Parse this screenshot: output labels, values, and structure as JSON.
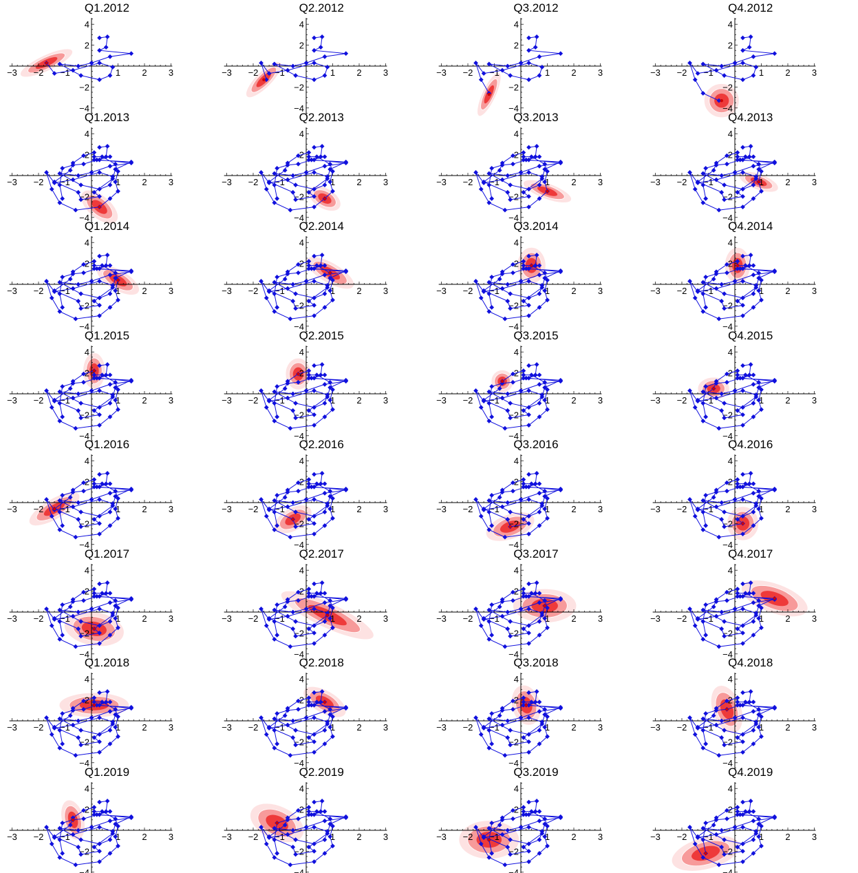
{
  "chart_data": {
    "type": "scatter",
    "layout": "small multiples, 8 rows x 4 columns",
    "xlim": [
      -3,
      3
    ],
    "ylim": [
      -4,
      4
    ],
    "x_ticks": [
      -3,
      -2,
      -1,
      1,
      2,
      3
    ],
    "y_ticks": [
      -4,
      -2,
      2,
      4
    ],
    "colors": {
      "path": "#1010dd",
      "density_core": "#ee3a3a",
      "density_mid": "#f79a9a",
      "density_outer": "#fde2e2",
      "current_marker": "#cc0000"
    },
    "panels": [
      {
        "title": "Q1.2012",
        "path": [
          [
            0.3,
            2.7
          ],
          [
            0.6,
            2.8
          ],
          [
            0.55,
            1.8
          ],
          [
            0.3,
            1.5
          ],
          [
            1.5,
            1.2
          ],
          [
            0.7,
            0.9
          ],
          [
            0.0,
            0.3
          ],
          [
            -0.5,
            0.0
          ],
          [
            -1.2,
            0.2
          ],
          [
            -0.4,
            -0.9
          ],
          [
            0.3,
            -1.3
          ],
          [
            0.7,
            -0.9
          ],
          [
            0.8,
            -0.1
          ],
          [
            0.3,
            0.3
          ],
          [
            -0.7,
            -0.4
          ],
          [
            -1.4,
            -0.7
          ],
          [
            -1.7,
            0.3
          ]
        ],
        "density": {
          "x": -1.7,
          "y": 0.3,
          "sx": 0.9,
          "sy": 0.35,
          "angle": 25
        }
      },
      {
        "title": "Q2.2012",
        "path": [
          [
            0.3,
            2.7
          ],
          [
            0.6,
            2.8
          ],
          [
            0.55,
            1.8
          ],
          [
            0.3,
            1.5
          ],
          [
            1.5,
            1.2
          ],
          [
            0.7,
            0.9
          ],
          [
            0.0,
            0.3
          ],
          [
            -0.5,
            0.0
          ],
          [
            -1.2,
            0.2
          ],
          [
            -0.4,
            -0.9
          ],
          [
            0.3,
            -1.3
          ],
          [
            0.7,
            -0.9
          ],
          [
            0.8,
            -0.1
          ],
          [
            0.3,
            0.3
          ],
          [
            -0.7,
            -0.4
          ],
          [
            -1.4,
            -0.7
          ],
          [
            -1.7,
            0.3
          ],
          [
            -1.5,
            -1.3
          ]
        ],
        "density": {
          "x": -1.6,
          "y": -1.3,
          "sx": 0.75,
          "sy": 0.35,
          "angle": 45
        }
      },
      {
        "title": "Q3.2012",
        "path": [
          [
            0.3,
            2.7
          ],
          [
            0.6,
            2.8
          ],
          [
            0.55,
            1.8
          ],
          [
            0.3,
            1.5
          ],
          [
            1.5,
            1.2
          ],
          [
            0.7,
            0.9
          ],
          [
            0.0,
            0.3
          ],
          [
            -0.5,
            0.0
          ],
          [
            -1.2,
            0.2
          ],
          [
            -0.4,
            -0.9
          ],
          [
            0.3,
            -1.3
          ],
          [
            0.7,
            -0.9
          ],
          [
            0.8,
            -0.1
          ],
          [
            0.3,
            0.3
          ],
          [
            -0.7,
            -0.4
          ],
          [
            -1.4,
            -0.7
          ],
          [
            -1.7,
            0.3
          ],
          [
            -1.5,
            -1.3
          ],
          [
            -1.2,
            -2.6
          ]
        ],
        "density": {
          "x": -1.2,
          "y": -2.7,
          "sx": 0.75,
          "sy": 0.3,
          "angle": 65
        }
      },
      {
        "title": "Q4.2012",
        "path": [
          [
            0.3,
            2.7
          ],
          [
            0.6,
            2.8
          ],
          [
            0.55,
            1.8
          ],
          [
            0.3,
            1.5
          ],
          [
            1.5,
            1.2
          ],
          [
            0.7,
            0.9
          ],
          [
            0.0,
            0.3
          ],
          [
            -0.5,
            0.0
          ],
          [
            -1.2,
            0.2
          ],
          [
            -0.4,
            -0.9
          ],
          [
            0.3,
            -1.3
          ],
          [
            0.7,
            -0.9
          ],
          [
            0.8,
            -0.1
          ],
          [
            0.3,
            0.3
          ],
          [
            -0.7,
            -0.4
          ],
          [
            -1.4,
            -0.7
          ],
          [
            -1.7,
            0.3
          ],
          [
            -1.5,
            -1.3
          ],
          [
            -1.2,
            -2.6
          ],
          [
            -0.6,
            -3.3
          ]
        ],
        "density": {
          "x": -0.5,
          "y": -3.3,
          "sx": 0.55,
          "sy": 0.75,
          "angle": 0
        }
      },
      {
        "title": "Q1.2013",
        "density": {
          "x": 0.3,
          "y": -3.0,
          "sx": 0.7,
          "sy": 0.5,
          "angle": -40
        }
      },
      {
        "title": "Q2.2013",
        "density": {
          "x": 0.7,
          "y": -2.2,
          "sx": 0.55,
          "sy": 0.45,
          "angle": -30
        }
      },
      {
        "title": "Q3.2013",
        "density": {
          "x": 1.0,
          "y": -1.5,
          "sx": 0.8,
          "sy": 0.35,
          "angle": -20
        }
      },
      {
        "title": "Q4.2013",
        "density": {
          "x": 0.9,
          "y": -0.6,
          "sx": 0.65,
          "sy": 0.35,
          "angle": -20
        }
      },
      {
        "title": "Q1.2014",
        "density": {
          "x": 1.0,
          "y": 0.4,
          "sx": 0.75,
          "sy": 0.45,
          "angle": -30
        }
      },
      {
        "title": "Q2.2014",
        "density": {
          "x": 0.9,
          "y": 1.1,
          "sx": 0.85,
          "sy": 0.45,
          "angle": -30
        }
      },
      {
        "title": "Q3.2014",
        "density": {
          "x": 0.4,
          "y": 1.8,
          "sx": 0.45,
          "sy": 0.8,
          "angle": 0
        }
      },
      {
        "title": "Q4.2014",
        "density": {
          "x": 0.1,
          "y": 1.8,
          "sx": 0.4,
          "sy": 0.8,
          "angle": 0
        }
      },
      {
        "title": "Q1.2015",
        "density": {
          "x": 0.1,
          "y": 2.2,
          "sx": 0.35,
          "sy": 0.8,
          "angle": 0
        }
      },
      {
        "title": "Q2.2015",
        "density": {
          "x": -0.3,
          "y": 1.9,
          "sx": 0.4,
          "sy": 0.7,
          "angle": 0
        }
      },
      {
        "title": "Q3.2015",
        "density": {
          "x": -0.7,
          "y": 1.2,
          "sx": 0.35,
          "sy": 0.5,
          "angle": -10
        }
      },
      {
        "title": "Q4.2015",
        "density": {
          "x": -0.8,
          "y": 0.5,
          "sx": 0.5,
          "sy": 0.5,
          "angle": 0
        }
      },
      {
        "title": "Q1.2016",
        "density": {
          "x": -1.4,
          "y": -0.6,
          "sx": 0.9,
          "sy": 0.45,
          "angle": 30
        }
      },
      {
        "title": "Q2.2016",
        "density": {
          "x": -0.5,
          "y": -1.6,
          "sx": 0.65,
          "sy": 0.5,
          "angle": 30
        }
      },
      {
        "title": "Q3.2016",
        "density": {
          "x": -0.4,
          "y": -2.3,
          "sx": 0.8,
          "sy": 0.55,
          "angle": 20
        }
      },
      {
        "title": "Q4.2016",
        "density": {
          "x": 0.3,
          "y": -2.0,
          "sx": 0.5,
          "sy": 0.75,
          "angle": 0
        }
      },
      {
        "title": "Q1.2017",
        "density": {
          "x": 0.1,
          "y": -1.6,
          "sx": 0.95,
          "sy": 0.75,
          "angle": -10
        }
      },
      {
        "title": "Q2.2017",
        "density": {
          "x": 0.8,
          "y": -0.3,
          "sx": 1.6,
          "sy": 0.55,
          "angle": -25
        }
      },
      {
        "title": "Q3.2017",
        "density": {
          "x": 0.9,
          "y": 0.6,
          "sx": 1.0,
          "sy": 0.75,
          "angle": 0
        }
      },
      {
        "title": "Q4.2017",
        "density": {
          "x": 1.5,
          "y": 1.3,
          "sx": 1.1,
          "sy": 0.65,
          "angle": -20
        }
      },
      {
        "title": "Q1.2018",
        "density": {
          "x": 0.1,
          "y": 1.5,
          "sx": 1.1,
          "sy": 0.55,
          "angle": 0
        }
      },
      {
        "title": "Q2.2018",
        "density": {
          "x": 0.7,
          "y": 1.8,
          "sx": 0.75,
          "sy": 0.5,
          "angle": -30
        }
      },
      {
        "title": "Q3.2018",
        "density": {
          "x": 0.2,
          "y": 1.5,
          "sx": 0.45,
          "sy": 0.9,
          "angle": 15
        }
      },
      {
        "title": "Q4.2018",
        "density": {
          "x": -0.3,
          "y": 1.1,
          "sx": 0.45,
          "sy": 1.1,
          "angle": 20
        }
      },
      {
        "title": "Q1.2019",
        "density": {
          "x": -0.7,
          "y": 1.0,
          "sx": 0.35,
          "sy": 0.9,
          "angle": 15
        }
      },
      {
        "title": "Q2.2019",
        "density": {
          "x": -1.1,
          "y": 0.7,
          "sx": 0.9,
          "sy": 0.75,
          "angle": -25
        }
      },
      {
        "title": "Q3.2019",
        "density": {
          "x": -1.2,
          "y": -0.9,
          "sx": 0.95,
          "sy": 0.85,
          "angle": 0
        }
      },
      {
        "title": "Q4.2019",
        "density": {
          "x": -1.1,
          "y": -2.2,
          "sx": 1.1,
          "sy": 0.7,
          "angle": 15
        }
      }
    ],
    "base_path": [
      [
        0.3,
        2.7
      ],
      [
        0.6,
        2.8
      ],
      [
        0.55,
        1.8
      ],
      [
        0.3,
        1.5
      ],
      [
        1.5,
        1.2
      ],
      [
        0.7,
        0.9
      ],
      [
        0.0,
        0.3
      ],
      [
        -0.5,
        0.0
      ],
      [
        -1.2,
        0.2
      ],
      [
        -0.4,
        -0.9
      ],
      [
        0.3,
        -1.3
      ],
      [
        0.7,
        -0.9
      ],
      [
        0.8,
        -0.1
      ],
      [
        0.3,
        0.3
      ],
      [
        -0.7,
        -0.4
      ],
      [
        -1.4,
        -0.7
      ],
      [
        -1.7,
        0.3
      ],
      [
        -1.5,
        -1.3
      ],
      [
        -1.2,
        -2.6
      ],
      [
        -0.6,
        -3.3
      ],
      [
        0.3,
        -3.0
      ],
      [
        0.7,
        -2.2
      ],
      [
        1.0,
        -1.5
      ],
      [
        0.9,
        -0.6
      ],
      [
        1.0,
        0.4
      ],
      [
        0.9,
        1.1
      ],
      [
        0.4,
        1.8
      ],
      [
        0.1,
        1.8
      ],
      [
        0.1,
        2.2
      ],
      [
        -0.3,
        1.9
      ],
      [
        -0.7,
        1.2
      ],
      [
        -0.8,
        0.5
      ],
      [
        -1.4,
        -0.6
      ],
      [
        -0.5,
        -1.6
      ],
      [
        -0.4,
        -2.3
      ],
      [
        0.3,
        -2.0
      ],
      [
        0.1,
        -1.6
      ],
      [
        0.8,
        -0.3
      ],
      [
        0.9,
        0.6
      ],
      [
        1.5,
        1.3
      ],
      [
        0.1,
        1.5
      ],
      [
        0.7,
        1.8
      ],
      [
        0.2,
        1.5
      ],
      [
        -0.3,
        1.1
      ],
      [
        -0.7,
        1.0
      ],
      [
        -1.1,
        0.7
      ],
      [
        -1.2,
        -0.9
      ],
      [
        -1.1,
        -2.2
      ]
    ]
  }
}
